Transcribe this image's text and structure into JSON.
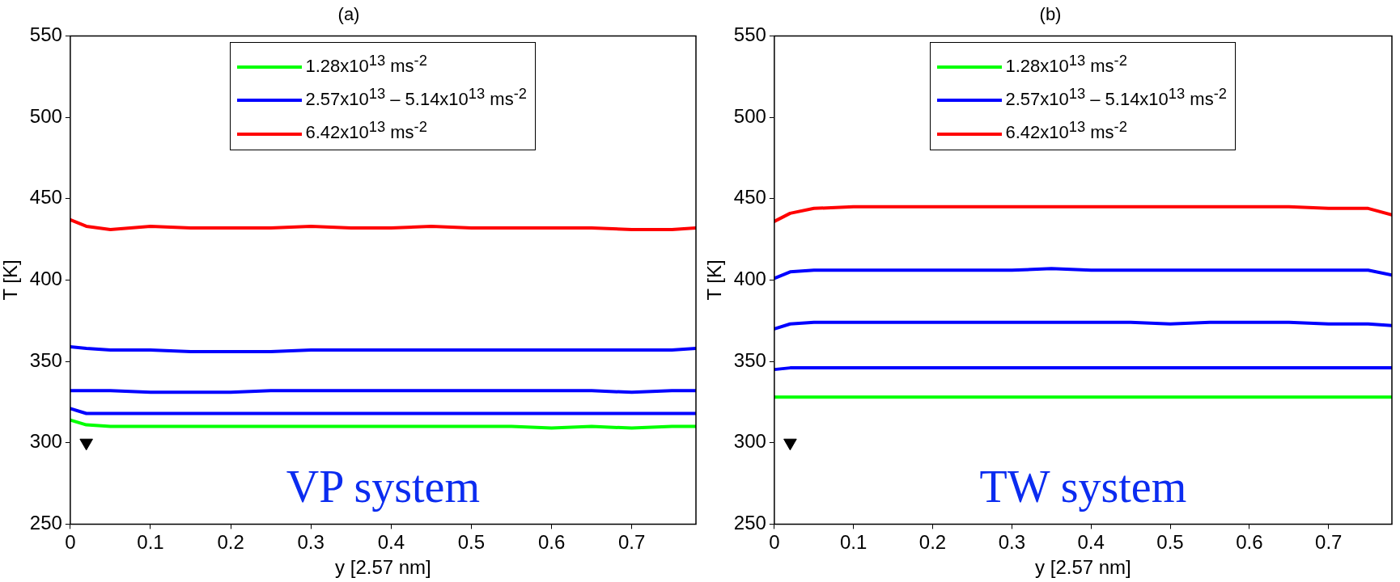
{
  "chart_data": [
    {
      "type": "line",
      "title": "(a)",
      "xlabel": "y [2.57 nm]",
      "ylabel": "T [K]",
      "xlim": [
        0,
        0.78
      ],
      "xticks": [
        0,
        0.1,
        0.2,
        0.3,
        0.4,
        0.5,
        0.6,
        0.7
      ],
      "ylim": [
        250,
        550
      ],
      "yticks": [
        250,
        300,
        350,
        400,
        450,
        500,
        550
      ],
      "grid": false,
      "legend": "top",
      "marker": "none",
      "line_style": "solid",
      "annotations": [
        "VP system"
      ],
      "x": [
        0,
        0.02,
        0.05,
        0.1,
        0.15,
        0.2,
        0.25,
        0.3,
        0.35,
        0.4,
        0.45,
        0.5,
        0.55,
        0.6,
        0.65,
        0.7,
        0.75,
        0.78
      ],
      "series": [
        {
          "name": "1.28x10$^{13}$ ms$^{-2}$",
          "color": "#00ff00",
          "values": [
            314,
            311,
            310,
            310,
            310,
            310,
            310,
            310,
            310,
            310,
            310,
            310,
            310,
            309,
            310,
            309,
            310,
            310
          ]
        },
        {
          "name": "2.57x10$^{13}$ – 5.14x10$^{13}$ ms$^{-2}$",
          "color": "#0000ff",
          "values": [
            321,
            318,
            318,
            318,
            318,
            318,
            318,
            318,
            318,
            318,
            318,
            318,
            318,
            318,
            318,
            318,
            318,
            318
          ]
        },
        {
          "color": "#0000ff",
          "values": [
            332,
            332,
            332,
            331,
            331,
            331,
            332,
            332,
            332,
            332,
            332,
            332,
            332,
            332,
            332,
            331,
            332,
            332
          ]
        },
        {
          "color": "#0000ff",
          "values": [
            359,
            358,
            357,
            357,
            356,
            356,
            356,
            357,
            357,
            357,
            357,
            357,
            357,
            357,
            357,
            357,
            357,
            358
          ]
        },
        {
          "name": "6.42x10$^{13}$ ms$^{-2}$",
          "color": "#ff0000",
          "values": [
            437,
            433,
            431,
            433,
            432,
            432,
            432,
            433,
            432,
            432,
            433,
            432,
            432,
            432,
            432,
            431,
            431,
            432
          ]
        },
        {
          "type": "scatter",
          "marker": "triangle",
          "color": "#000000",
          "x": [
            0.02
          ],
          "values": [
            300
          ]
        }
      ]
    },
    {
      "type": "line",
      "title": "(b)",
      "xlabel": "y [2.57 nm]",
      "ylabel": "T [K]",
      "xlim": [
        0,
        0.78
      ],
      "xticks": [
        0,
        0.1,
        0.2,
        0.3,
        0.4,
        0.5,
        0.6,
        0.7
      ],
      "ylim": [
        250,
        550
      ],
      "yticks": [
        250,
        300,
        350,
        400,
        450,
        500,
        550
      ],
      "grid": false,
      "legend": "top",
      "marker": "none",
      "line_style": "solid",
      "annotations": [
        "TW system"
      ],
      "x": [
        0,
        0.02,
        0.05,
        0.1,
        0.15,
        0.2,
        0.25,
        0.3,
        0.35,
        0.4,
        0.45,
        0.5,
        0.55,
        0.6,
        0.65,
        0.7,
        0.75,
        0.78
      ],
      "series": [
        {
          "name": "1.28x10$^{13}$ ms$^{-2}$",
          "color": "#00ff00",
          "values": [
            328,
            328,
            328,
            328,
            328,
            328,
            328,
            328,
            328,
            328,
            328,
            328,
            328,
            328,
            328,
            328,
            328,
            328
          ]
        },
        {
          "name": "2.57x10$^{13}$ – 5.14x10$^{13}$ ms$^{-2}$",
          "color": "#0000ff",
          "values": [
            345,
            346,
            346,
            346,
            346,
            346,
            346,
            346,
            346,
            346,
            346,
            346,
            346,
            346,
            346,
            346,
            346,
            346
          ]
        },
        {
          "color": "#0000ff",
          "values": [
            370,
            373,
            374,
            374,
            374,
            374,
            374,
            374,
            374,
            374,
            374,
            373,
            374,
            374,
            374,
            373,
            373,
            372
          ]
        },
        {
          "color": "#0000ff",
          "values": [
            401,
            405,
            406,
            406,
            406,
            406,
            406,
            406,
            407,
            406,
            406,
            406,
            406,
            406,
            406,
            406,
            406,
            403
          ]
        },
        {
          "name": "6.42x10$^{13}$ ms$^{-2}$",
          "color": "#ff0000",
          "values": [
            436,
            441,
            444,
            445,
            445,
            445,
            445,
            445,
            445,
            445,
            445,
            445,
            445,
            445,
            445,
            444,
            444,
            440
          ]
        },
        {
          "type": "scatter",
          "marker": "triangle",
          "color": "#000000",
          "x": [
            0.02
          ],
          "values": [
            300
          ]
        }
      ]
    }
  ]
}
